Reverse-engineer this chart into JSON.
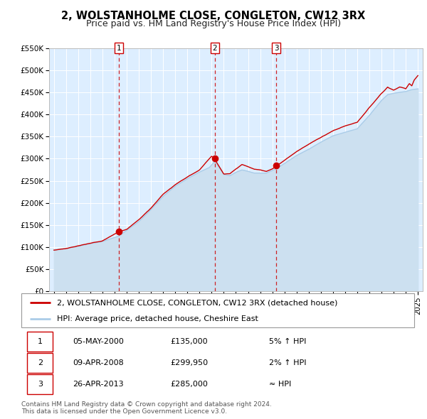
{
  "title": "2, WOLSTANHOLME CLOSE, CONGLETON, CW12 3RX",
  "subtitle": "Price paid vs. HM Land Registry's House Price Index (HPI)",
  "ylim": [
    0,
    550000
  ],
  "yticks": [
    0,
    50000,
    100000,
    150000,
    200000,
    250000,
    300000,
    350000,
    400000,
    450000,
    500000,
    550000
  ],
  "ytick_labels": [
    "£0",
    "£50K",
    "£100K",
    "£150K",
    "£200K",
    "£250K",
    "£300K",
    "£350K",
    "£400K",
    "£450K",
    "£500K",
    "£550K"
  ],
  "hpi_color": "#aacce8",
  "hpi_fill_color": "#cce0f0",
  "price_color": "#cc0000",
  "marker_color": "#cc0000",
  "bg_color": "#ddeeff",
  "grid_color": "#ffffff",
  "legend_label_price": "2, WOLSTANHOLME CLOSE, CONGLETON, CW12 3RX (detached house)",
  "legend_label_hpi": "HPI: Average price, detached house, Cheshire East",
  "sale_years": [
    2000.35,
    2008.27,
    2013.32
  ],
  "sale_prices": [
    135000,
    299950,
    285000
  ],
  "footer1": "Contains HM Land Registry data © Crown copyright and database right 2024.",
  "footer2": "This data is licensed under the Open Government Licence v3.0.",
  "title_fontsize": 10.5,
  "subtitle_fontsize": 9,
  "axis_fontsize": 7.5,
  "legend_fontsize": 8,
  "table_fontsize": 8,
  "footer_fontsize": 6.5,
  "row_data": [
    [
      "1",
      "05-MAY-2000",
      "£135,000",
      "5% ↑ HPI"
    ],
    [
      "2",
      "09-APR-2008",
      "£299,950",
      "2% ↑ HPI"
    ],
    [
      "3",
      "26-APR-2013",
      "£285,000",
      "≈ HPI"
    ]
  ]
}
